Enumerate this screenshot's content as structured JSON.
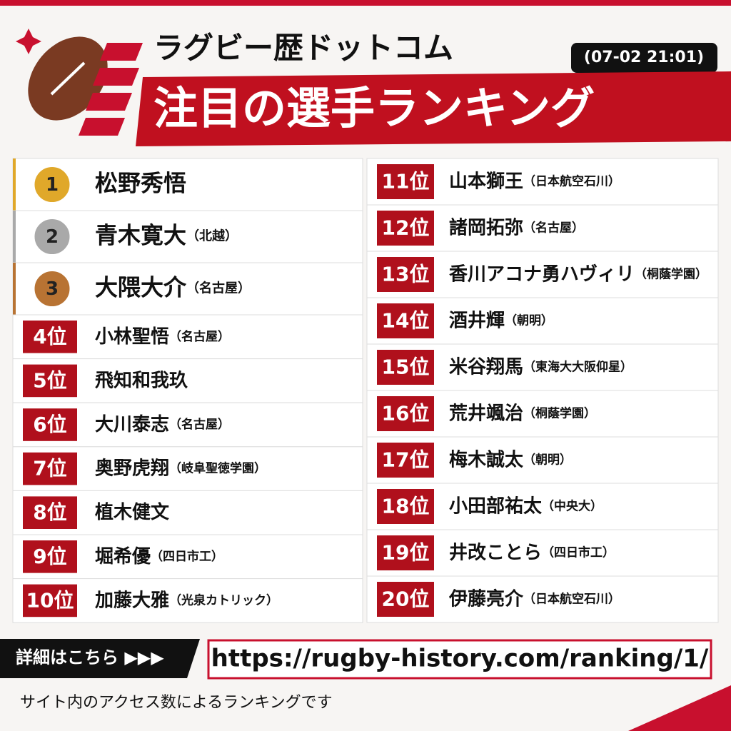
{
  "header": {
    "site_name": "ラグビー歴ドットコム",
    "timestamp": "(07-02 21:01)",
    "title": "注目の選手ランキング"
  },
  "ranking": [
    {
      "rank": "1",
      "name": "松野秀悟"
    },
    {
      "rank": "2",
      "name": "青木寛大",
      "team": "（北越）"
    },
    {
      "rank": "3",
      "name": "大隈大介",
      "team": "（名古屋）"
    },
    {
      "rank": "4位",
      "name": "小林聖悟",
      "team": "（名古屋）"
    },
    {
      "rank": "5位",
      "name": "飛知和我玖"
    },
    {
      "rank": "6位",
      "name": "大川泰志",
      "team": "（名古屋）"
    },
    {
      "rank": "7位",
      "name": "奥野虎翔",
      "team": "（岐阜聖徳学園）"
    },
    {
      "rank": "8位",
      "name": "植木健文"
    },
    {
      "rank": "9位",
      "name": "堀希優",
      "team": "（四日市工）"
    },
    {
      "rank": "10位",
      "name": "加藤大雅",
      "team": "（光泉カトリック）"
    },
    {
      "rank": "11位",
      "name": "山本獅王",
      "team": "（日本航空石川）"
    },
    {
      "rank": "12位",
      "name": "諸岡拓弥",
      "team": "（名古屋）"
    },
    {
      "rank": "13位",
      "name": "香川アコナ勇ハヴィリ",
      "team": "（桐蔭学園）"
    },
    {
      "rank": "14位",
      "name": "酒井輝",
      "team": "（朝明）"
    },
    {
      "rank": "15位",
      "name": "米谷翔馬",
      "team": "（東海大大阪仰星）"
    },
    {
      "rank": "16位",
      "name": "荒井颯治",
      "team": "（桐蔭学園）"
    },
    {
      "rank": "17位",
      "name": "梅木誠太",
      "team": "（朝明）"
    },
    {
      "rank": "18位",
      "name": "小田部祐太",
      "team": "（中央大）"
    },
    {
      "rank": "19位",
      "name": "井改ことら",
      "team": "（四日市工）"
    },
    {
      "rank": "20位",
      "name": "伊藤亮介",
      "team": "（日本航空石川）"
    }
  ],
  "footer": {
    "link_label": "詳細はこちら ▶▶▶",
    "url": "https://rugby-history.com/ranking/1/",
    "note": "サイト内のアクセス数によるランキングです"
  }
}
